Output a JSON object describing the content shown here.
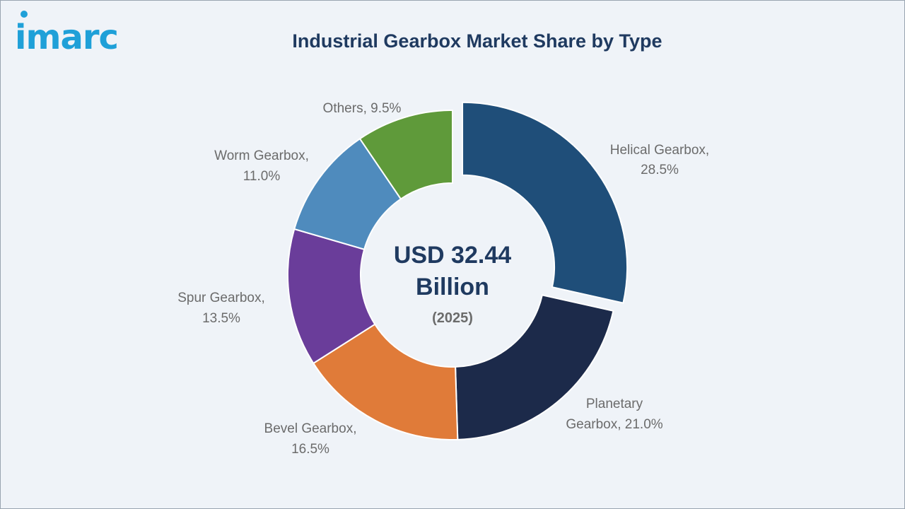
{
  "brand": {
    "logo_text": "imarc",
    "color": "#1fa0d8"
  },
  "chart_data": {
    "type": "pie",
    "title": "Industrial Gearbox Market Share by Type",
    "center_value_line1": "USD 32.44",
    "center_value_line2": "Billion",
    "center_year": "(2025)",
    "slices": [
      {
        "label": "Helical Gearbox,",
        "value_text": "28.5%",
        "value": 28.5,
        "color": "#1f4e79",
        "exploded": true
      },
      {
        "label": "Planetary",
        "value_text": "Gearbox, 21.0%",
        "value": 21.0,
        "color": "#1c2a4a",
        "exploded": false
      },
      {
        "label": "Bevel Gearbox,",
        "value_text": "16.5%",
        "value": 16.5,
        "color": "#e07b39",
        "exploded": false
      },
      {
        "label": "Spur Gearbox,",
        "value_text": "13.5%",
        "value": 13.5,
        "color": "#6a3d9a",
        "exploded": false
      },
      {
        "label": "Worm Gearbox,",
        "value_text": "11.0%",
        "value": 11.0,
        "color": "#4f8bbd",
        "exploded": false
      },
      {
        "label": "Others, 9.5%",
        "value_text": "",
        "value": 9.5,
        "color": "#5f9a3a",
        "exploded": false
      }
    ]
  }
}
